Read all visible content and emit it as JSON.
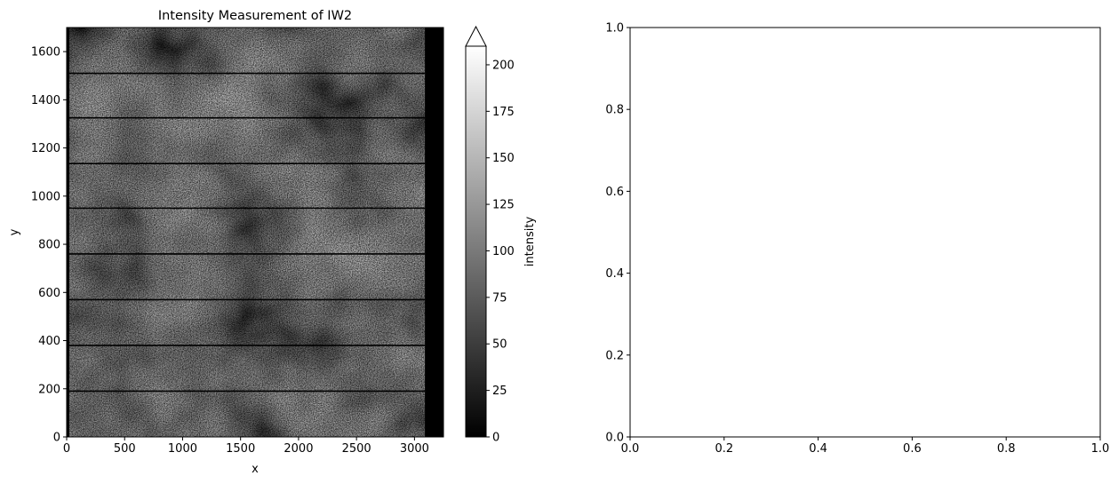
{
  "chart_data": [
    {
      "type": "heatmap",
      "title": "Intensity Measurement of IW2",
      "xlabel": "x",
      "ylabel": "y",
      "xlim": [
        0,
        3250
      ],
      "ylim": [
        0,
        1700
      ],
      "x_ticks": [
        0,
        500,
        1000,
        1500,
        2000,
        2500,
        3000
      ],
      "y_ticks": [
        0,
        200,
        400,
        600,
        800,
        1000,
        1200,
        1400,
        1600
      ],
      "colormap": "gray",
      "colorbar": {
        "label": "intensity",
        "range": [
          0,
          210
        ],
        "extend": "max",
        "ticks": [
          0,
          25,
          50,
          75,
          100,
          125,
          150,
          175,
          200
        ]
      },
      "burst_boundaries_y": [
        190,
        380,
        570,
        760,
        950,
        1135,
        1325,
        1510
      ],
      "data_extent_x": [
        0,
        3090
      ],
      "image_extent_x": [
        0,
        3250
      ]
    },
    {
      "type": "empty",
      "xlim": [
        0.0,
        1.0
      ],
      "ylim": [
        0.0,
        1.0
      ],
      "x_ticks": [
        "0.0",
        "0.2",
        "0.4",
        "0.6",
        "0.8",
        "1.0"
      ],
      "y_ticks": [
        "0.0",
        "0.2",
        "0.4",
        "0.6",
        "0.8",
        "1.0"
      ]
    }
  ]
}
